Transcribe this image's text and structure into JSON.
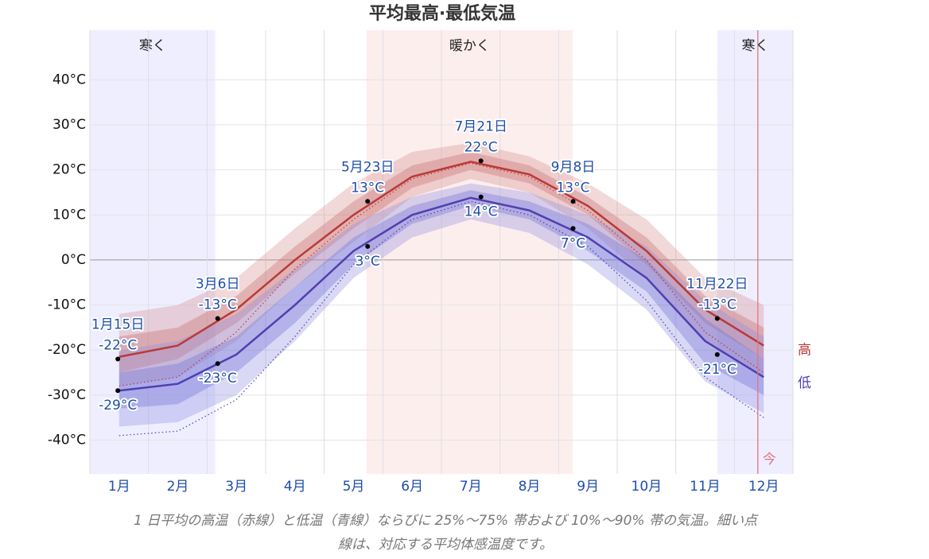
{
  "chart_data": {
    "type": "line",
    "title": "平均最高·最低気温",
    "caption_lines": [
      "1 日平均の高温（赤線）と低温（青線）ならびに 25%～75% 帯および 10%～90% 帯の気温。細い点",
      "線は、対応する平均体感温度です。"
    ],
    "categories": [
      "1月",
      "2月",
      "3月",
      "4月",
      "5月",
      "6月",
      "7月",
      "8月",
      "9月",
      "10月",
      "11月",
      "12月"
    ],
    "ylim": [
      -47.5,
      51
    ],
    "yticks": [
      {
        "value": 40,
        "label": "40°C"
      },
      {
        "value": 30,
        "label": "30°C"
      },
      {
        "value": 20,
        "label": "20°C"
      },
      {
        "value": 10,
        "label": "10°C"
      },
      {
        "value": 0,
        "label": "0°C"
      },
      {
        "value": -10,
        "label": "-10°C"
      },
      {
        "value": -20,
        "label": "-20°C"
      },
      {
        "value": -30,
        "label": "-30°C"
      },
      {
        "value": -40,
        "label": "-40°C"
      }
    ],
    "grid": true,
    "seasons": [
      {
        "label": "寒く",
        "span": [
          0,
          2.14
        ],
        "color": "#eeeeff"
      },
      {
        "label": "暖かく",
        "span": [
          4.72,
          8.24
        ],
        "color": "#fdeeee"
      },
      {
        "label": "寒く",
        "span": [
          10.71,
          12
        ],
        "color": "#eeeeff"
      }
    ],
    "now": {
      "label": "今",
      "x": 11.4,
      "color": "#e8727f"
    },
    "series": [
      {
        "name": "高",
        "color": "#b83a3a",
        "band_outer": "rgba(214,140,140,0.33)",
        "band_inner": "rgba(196,100,100,0.33)",
        "values": [
          -21.5,
          -19,
          -11,
          0,
          10,
          18.5,
          21.8,
          19,
          12,
          2,
          -11,
          -19
        ],
        "p10": [
          -28,
          -26,
          -18,
          -6,
          4,
          14,
          18,
          15,
          7,
          -4,
          -18,
          -26
        ],
        "p25": [
          -25,
          -22,
          -14,
          -3,
          7,
          16,
          20,
          17,
          10,
          -1,
          -14,
          -22
        ],
        "p75": [
          -17,
          -15,
          -8,
          3,
          13,
          21,
          24,
          21,
          14,
          5,
          -8,
          -15
        ],
        "p90": [
          -12,
          -10,
          -4,
          7,
          17,
          24,
          26,
          23,
          17,
          9,
          -4,
          -10
        ],
        "feels_like": [
          -28,
          -26,
          -16,
          -2,
          9,
          18,
          21.5,
          18.5,
          11,
          0,
          -16,
          -25
        ]
      },
      {
        "name": "低",
        "color": "#4f3fb0",
        "band_outer": "rgba(140,140,225,0.33)",
        "band_inner": "rgba(110,110,215,0.35)",
        "values": [
          -29,
          -27.5,
          -21,
          -10,
          2,
          10,
          13.8,
          11,
          5,
          -4,
          -18,
          -26
        ],
        "p10": [
          -37,
          -36,
          -30,
          -18,
          -4,
          5,
          9,
          6,
          -1,
          -11,
          -27,
          -34
        ],
        "p25": [
          -33,
          -32,
          -25,
          -14,
          -1,
          8,
          12,
          9,
          2,
          -7,
          -23,
          -30
        ],
        "p75": [
          -25,
          -23,
          -17,
          -6,
          5,
          12,
          15.5,
          13,
          8,
          0,
          -13,
          -22
        ],
        "p90": [
          -20,
          -18,
          -12,
          -2,
          8,
          14,
          17,
          15,
          10,
          3,
          -9,
          -17
        ],
        "feels_like": [
          -39,
          -38,
          -31,
          -17,
          -1,
          9,
          13,
          10,
          3,
          -9,
          -26,
          -35
        ]
      }
    ],
    "annotations": [
      {
        "date": "1月15日",
        "high": -22,
        "high_label": "-22°C",
        "low": -29,
        "low_label": "-29°C"
      },
      {
        "date": "3月6日",
        "high": -13,
        "high_label": "-13°C",
        "low": -23,
        "low_label": "-23°C"
      },
      {
        "date": "5月23日",
        "high": 13,
        "high_label": "13°C",
        "low": 3,
        "low_label": "3°C"
      },
      {
        "date": "7月21日",
        "high": 22,
        "high_label": "22°C",
        "low": 14,
        "low_label": "14°C"
      },
      {
        "date": "9月8日",
        "high": 13,
        "high_label": "13°C",
        "low": 7,
        "low_label": "7°C"
      },
      {
        "date": "11月22日",
        "high": -13,
        "high_label": "-13°C",
        "low": -21,
        "low_label": "-21°C"
      }
    ]
  }
}
